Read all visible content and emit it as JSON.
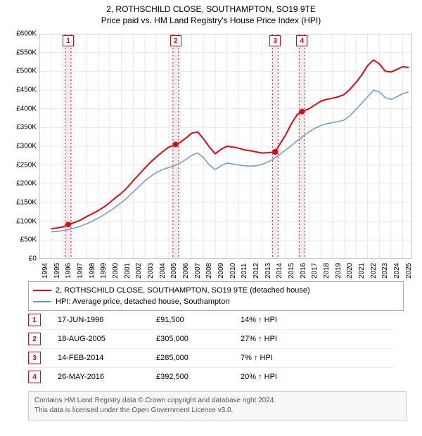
{
  "title_line1": "2, ROTHSCHILD CLOSE, SOUTHAMPTON, SO19 9TE",
  "title_line2": "Price paid vs. HM Land Registry's House Price Index (HPI)",
  "chart": {
    "type": "line",
    "background_color": "#ffffff",
    "grid_color": "#e8e8e8",
    "plot_border_color": "#999999",
    "x": {
      "ticks": [
        1994,
        1995,
        1996,
        1997,
        1998,
        1999,
        2000,
        2001,
        2002,
        2003,
        2004,
        2005,
        2006,
        2007,
        2008,
        2009,
        2010,
        2011,
        2012,
        2013,
        2014,
        2015,
        2016,
        2017,
        2018,
        2019,
        2020,
        2021,
        2022,
        2023,
        2024,
        2025
      ],
      "min": 1994,
      "max": 2025.8,
      "fontsize": 10
    },
    "y": {
      "labels": [
        "£0",
        "£50K",
        "£100K",
        "£150K",
        "£200K",
        "£250K",
        "£300K",
        "£350K",
        "£400K",
        "£450K",
        "£500K",
        "£550K",
        "£600K"
      ],
      "values": [
        0,
        50000,
        100000,
        150000,
        200000,
        250000,
        300000,
        350000,
        400000,
        450000,
        500000,
        550000,
        600000
      ],
      "min": 0,
      "max": 600000,
      "fontsize": 10
    },
    "event_bands": [
      {
        "x_year": 1996.46,
        "label": "1"
      },
      {
        "x_year": 2005.63,
        "label": "2"
      },
      {
        "x_year": 2014.12,
        "label": "3"
      },
      {
        "x_year": 2016.4,
        "label": "4"
      }
    ],
    "band_fill": "#f3e9ea",
    "band_line": "#e30513",
    "band_dash": "2,3",
    "marker_color": "#e30513",
    "marker_radius": 4,
    "series": [
      {
        "name": "price_paid",
        "color": "#e30513",
        "width": 2,
        "points": [
          [
            1995.0,
            80000
          ],
          [
            1995.5,
            82000
          ],
          [
            1996.0,
            85000
          ],
          [
            1996.46,
            91500
          ],
          [
            1997.0,
            97000
          ],
          [
            1997.5,
            103000
          ],
          [
            1998.0,
            112000
          ],
          [
            1998.5,
            120000
          ],
          [
            1999.0,
            128000
          ],
          [
            1999.5,
            138000
          ],
          [
            2000.0,
            150000
          ],
          [
            2000.5,
            163000
          ],
          [
            2001.0,
            175000
          ],
          [
            2001.5,
            190000
          ],
          [
            2002.0,
            208000
          ],
          [
            2002.5,
            225000
          ],
          [
            2003.0,
            242000
          ],
          [
            2003.5,
            258000
          ],
          [
            2004.0,
            272000
          ],
          [
            2004.5,
            285000
          ],
          [
            2005.0,
            297000
          ],
          [
            2005.63,
            305000
          ],
          [
            2006.0,
            310000
          ],
          [
            2006.5,
            322000
          ],
          [
            2007.0,
            335000
          ],
          [
            2007.5,
            338000
          ],
          [
            2008.0,
            320000
          ],
          [
            2008.5,
            298000
          ],
          [
            2009.0,
            280000
          ],
          [
            2009.5,
            292000
          ],
          [
            2010.0,
            300000
          ],
          [
            2010.5,
            298000
          ],
          [
            2011.0,
            295000
          ],
          [
            2011.5,
            290000
          ],
          [
            2012.0,
            288000
          ],
          [
            2012.5,
            285000
          ],
          [
            2013.0,
            282000
          ],
          [
            2013.5,
            283000
          ],
          [
            2014.12,
            285000
          ],
          [
            2014.5,
            305000
          ],
          [
            2015.0,
            330000
          ],
          [
            2015.5,
            360000
          ],
          [
            2016.0,
            385000
          ],
          [
            2016.4,
            392500
          ],
          [
            2017.0,
            400000
          ],
          [
            2017.5,
            410000
          ],
          [
            2018.0,
            420000
          ],
          [
            2018.5,
            425000
          ],
          [
            2019.0,
            428000
          ],
          [
            2019.5,
            432000
          ],
          [
            2020.0,
            438000
          ],
          [
            2020.5,
            452000
          ],
          [
            2021.0,
            470000
          ],
          [
            2021.5,
            490000
          ],
          [
            2022.0,
            515000
          ],
          [
            2022.5,
            530000
          ],
          [
            2023.0,
            520000
          ],
          [
            2023.5,
            500000
          ],
          [
            2024.0,
            498000
          ],
          [
            2024.5,
            505000
          ],
          [
            2025.0,
            512000
          ],
          [
            2025.5,
            510000
          ]
        ],
        "sale_markers": [
          [
            1996.46,
            91500
          ],
          [
            2005.63,
            305000
          ],
          [
            2014.12,
            285000
          ],
          [
            2016.4,
            392500
          ]
        ]
      },
      {
        "name": "hpi",
        "color": "#6b9bd1",
        "width": 1.5,
        "points": [
          [
            1995.0,
            72000
          ],
          [
            1995.5,
            73000
          ],
          [
            1996.0,
            75000
          ],
          [
            1996.5,
            78000
          ],
          [
            1997.0,
            82000
          ],
          [
            1997.5,
            87000
          ],
          [
            1998.0,
            93000
          ],
          [
            1998.5,
            100000
          ],
          [
            1999.0,
            108000
          ],
          [
            1999.5,
            117000
          ],
          [
            2000.0,
            127000
          ],
          [
            2000.5,
            138000
          ],
          [
            2001.0,
            150000
          ],
          [
            2001.5,
            163000
          ],
          [
            2002.0,
            178000
          ],
          [
            2002.5,
            193000
          ],
          [
            2003.0,
            208000
          ],
          [
            2003.5,
            220000
          ],
          [
            2004.0,
            230000
          ],
          [
            2004.5,
            238000
          ],
          [
            2005.0,
            243000
          ],
          [
            2005.5,
            248000
          ],
          [
            2006.0,
            255000
          ],
          [
            2006.5,
            265000
          ],
          [
            2007.0,
            276000
          ],
          [
            2007.5,
            282000
          ],
          [
            2008.0,
            270000
          ],
          [
            2008.5,
            250000
          ],
          [
            2009.0,
            238000
          ],
          [
            2009.5,
            248000
          ],
          [
            2010.0,
            255000
          ],
          [
            2010.5,
            253000
          ],
          [
            2011.0,
            250000
          ],
          [
            2011.5,
            248000
          ],
          [
            2012.0,
            247000
          ],
          [
            2012.5,
            248000
          ],
          [
            2013.0,
            252000
          ],
          [
            2013.5,
            258000
          ],
          [
            2014.0,
            267000
          ],
          [
            2014.5,
            278000
          ],
          [
            2015.0,
            290000
          ],
          [
            2015.5,
            302000
          ],
          [
            2016.0,
            315000
          ],
          [
            2016.5,
            327000
          ],
          [
            2017.0,
            338000
          ],
          [
            2017.5,
            348000
          ],
          [
            2018.0,
            355000
          ],
          [
            2018.5,
            360000
          ],
          [
            2019.0,
            363000
          ],
          [
            2019.5,
            366000
          ],
          [
            2020.0,
            370000
          ],
          [
            2020.5,
            382000
          ],
          [
            2021.0,
            398000
          ],
          [
            2021.5,
            415000
          ],
          [
            2022.0,
            432000
          ],
          [
            2022.5,
            450000
          ],
          [
            2023.0,
            445000
          ],
          [
            2023.5,
            430000
          ],
          [
            2024.0,
            425000
          ],
          [
            2024.5,
            432000
          ],
          [
            2025.0,
            440000
          ],
          [
            2025.5,
            445000
          ]
        ]
      }
    ]
  },
  "legend": {
    "items": [
      {
        "color": "#e30513",
        "label": "2, ROTHSCHILD CLOSE, SOUTHAMPTON, SO19 9TE (detached house)"
      },
      {
        "color": "#6b9bd1",
        "label": "HPI: Average price, detached house, Southampton"
      }
    ]
  },
  "events": [
    {
      "n": "1",
      "date": "17-JUN-1996",
      "price": "£91,500",
      "delta": "14% ↑ HPI"
    },
    {
      "n": "2",
      "date": "18-AUG-2005",
      "price": "£305,000",
      "delta": "27% ↑ HPI"
    },
    {
      "n": "3",
      "date": "14-FEB-2014",
      "price": "£285,000",
      "delta": "7% ↑ HPI"
    },
    {
      "n": "4",
      "date": "26-MAY-2016",
      "price": "£392,500",
      "delta": "20% ↑ HPI"
    }
  ],
  "footer_line1": "Contains HM Land Registry data © Crown copyright and database right 2024.",
  "footer_line2": "This data is licensed under the Open Government Licence v3.0."
}
